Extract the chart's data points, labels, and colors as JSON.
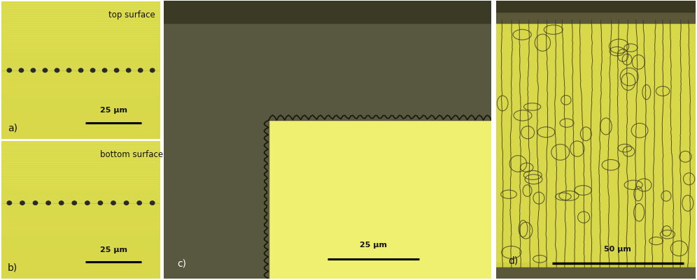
{
  "fig_width": 9.96,
  "fig_height": 4.02,
  "dpi": 100,
  "bg_yellow_light": "#dede60",
  "bg_yellow_ab": "#d4d44a",
  "panel_dark": "#585840",
  "panel_dark2": "#484830",
  "text_color": "#111111",
  "dot_color": "#2a2a2a",
  "label_a": "a)",
  "label_b": "b)",
  "label_c": "c)",
  "label_d": "d)",
  "scale_a": "25 μm",
  "scale_b": "25 μm",
  "scale_c": "25 μm",
  "scale_d": "50 μm",
  "title_a": "top surface",
  "title_b": "bottom surface",
  "n_dots_a": 13,
  "n_dots_b": 12,
  "white_sep": "#ffffff",
  "glass_yellow": "#e8e870",
  "glass_yellow_light": "#f0f080",
  "dark_bg_c": "#585840",
  "track_color": "#333322",
  "bubble_edge": "#4a4a30"
}
